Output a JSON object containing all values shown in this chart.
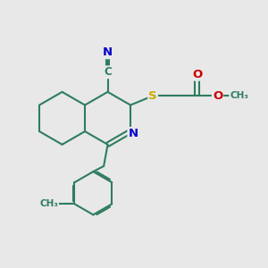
{
  "bg_color": "#e8e8e8",
  "bond_color": "#2e7d5e",
  "bond_width": 1.5,
  "atom_colors": {
    "N": "#0000cc",
    "S": "#ccaa00",
    "O": "#cc0000",
    "C": "#2e7d5e"
  },
  "figsize": [
    3.0,
    3.0
  ],
  "dpi": 100,
  "xlim": [
    0,
    10
  ],
  "ylim": [
    0,
    10
  ]
}
